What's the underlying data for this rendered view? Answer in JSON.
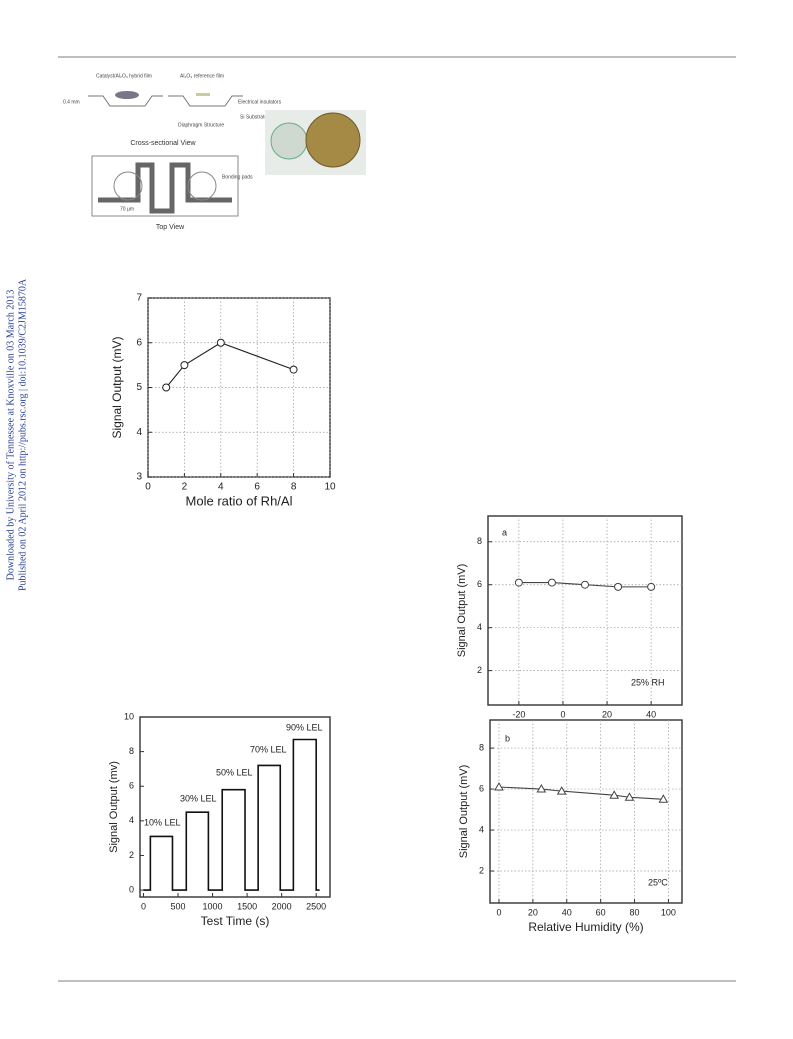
{
  "sidebar": [
    "Downloaded by University of Tennessee at Knoxville on 03 March 2013",
    "Published on 02 April 2012 on http://pubs.rsc.org | doi:10.1039/C2JM15870A"
  ],
  "figure1": {
    "labels": [
      "Catalyst/Al₂O₃ hybrid film",
      "Al₂O₃ reference film",
      "0.4 mm",
      "Electrical insulators",
      "Diaphragm Structure",
      "Si Substrate",
      "Cross-sectional View",
      "Bonding pads",
      "70 µm",
      "Top View"
    ]
  },
  "chart_data": [
    {
      "type": "line",
      "marker": "circle",
      "x": [
        1,
        2,
        4,
        8
      ],
      "values": [
        5,
        5.5,
        6,
        5.4
      ],
      "xlim": [
        0,
        10
      ],
      "ylim": [
        3,
        7
      ],
      "xticks": [
        0,
        2,
        4,
        6,
        8,
        10
      ],
      "yticks": [
        3,
        4,
        5,
        6,
        7
      ],
      "grid": true,
      "xlabel": "Mole ratio of Rh/Al",
      "ylabel": "Signal Output (mV)",
      "color": "#222"
    },
    {
      "type": "line",
      "x": [
        0,
        100,
        100,
        420,
        420,
        620,
        620,
        940,
        940,
        1140,
        1140,
        1470,
        1470,
        1660,
        1660,
        1980,
        1980,
        2170,
        2170,
        2500,
        2500,
        2550
      ],
      "values": [
        0,
        0,
        3.1,
        3.1,
        0,
        0,
        4.5,
        4.5,
        0,
        0,
        5.8,
        5.8,
        0,
        0,
        7.2,
        7.2,
        0,
        0,
        8.7,
        8.7,
        0,
        0
      ],
      "xlim": [
        -50,
        2700
      ],
      "ylim": [
        -0.4,
        10
      ],
      "xticks": [
        0,
        500,
        1000,
        1500,
        2000,
        2500
      ],
      "yticks": [
        0,
        2,
        4,
        6,
        8,
        10
      ],
      "grid": false,
      "xlabel": "Test Time (s)",
      "ylabel": "Signal Output (mv)",
      "annotations": [
        "10% LEL",
        "30% LEL",
        "50% LEL",
        "70% LEL",
        "90% LEL"
      ],
      "color": "#111"
    },
    {
      "type": "line",
      "marker": "circle",
      "x": [
        -20,
        -5,
        10,
        25,
        40
      ],
      "values": [
        6.1,
        6.1,
        6.0,
        5.9,
        5.9
      ],
      "xlim": [
        -34,
        54
      ],
      "ylim": [
        0.4,
        9.2
      ],
      "xticks": [
        -20,
        0,
        20,
        40
      ],
      "yticks": [
        2,
        4,
        6,
        8
      ],
      "grid": true,
      "ylabel": "Signal Output (mV)",
      "annotations": [
        "a",
        "25% RH"
      ],
      "color": "#444"
    },
    {
      "type": "line",
      "marker": "triangle",
      "x": [
        0,
        25,
        37,
        68,
        77,
        97
      ],
      "values": [
        6.1,
        6.0,
        5.9,
        5.7,
        5.6,
        5.5
      ],
      "xlim": [
        -5.3,
        108
      ],
      "ylim": [
        0.44,
        9.37
      ],
      "xticks": [
        0,
        20,
        40,
        60,
        80,
        100
      ],
      "yticks": [
        2,
        4,
        6,
        8
      ],
      "grid": true,
      "xlabel": "Relative Humidity (%)",
      "ylabel": "Signal Output (mV)",
      "annotations": [
        "b",
        "25ºC"
      ],
      "color": "#444"
    }
  ]
}
